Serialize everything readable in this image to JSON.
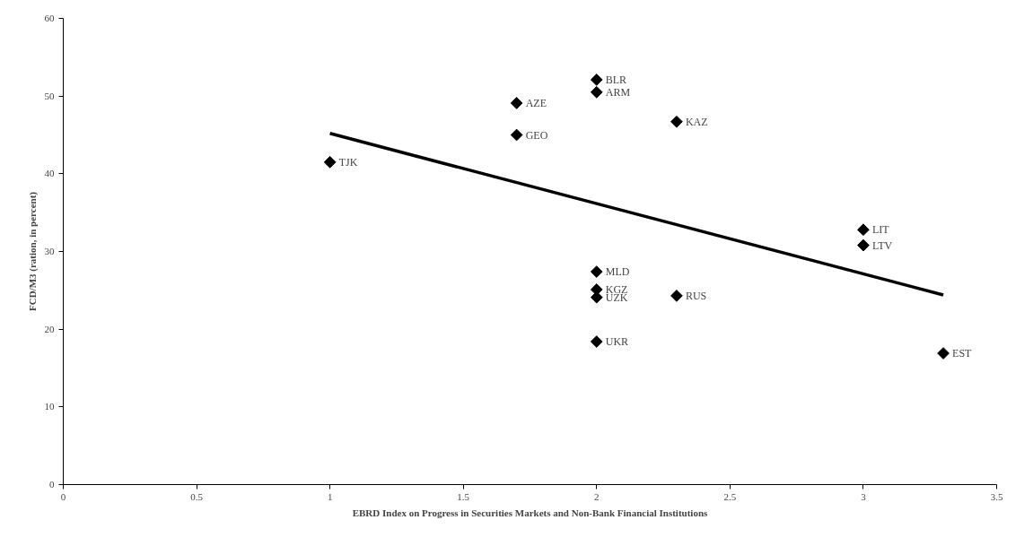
{
  "chart_data": {
    "type": "scatter",
    "xlabel": "EBRD Index on Progress in Securities Markets and Non-Bank Financial Institutions",
    "ylabel": "FCD/M3 (ration, in percent)",
    "xlim": [
      0,
      3.5
    ],
    "xticks": [
      0,
      0.5,
      1,
      1.5,
      2,
      2.5,
      3,
      3.5
    ],
    "ylim": [
      0,
      60
    ],
    "yticks": [
      0,
      10,
      20,
      30,
      40,
      50,
      60
    ],
    "grid": false,
    "marker": "diamond",
    "series": [
      {
        "color": "#000000",
        "x": [
          1,
          1.7,
          1.7,
          2,
          2,
          2,
          2,
          2,
          2,
          2.3,
          2.3,
          3,
          3,
          3.3
        ],
        "values": [
          41.5,
          49.1,
          45.0,
          52.1,
          50.5,
          27.4,
          25.1,
          24.1,
          18.4,
          46.7,
          24.3,
          32.8,
          30.8,
          16.9
        ]
      },
      {
        "type": "line",
        "color": "#000000",
        "line_style": "solid",
        "marker": "none",
        "x": [
          1,
          3.3
        ],
        "values": [
          45.2,
          24.4
        ]
      }
    ],
    "annotations": [
      {
        "text": "TJK",
        "x": 1,
        "y": 41.5
      },
      {
        "text": "AZE",
        "x": 1.7,
        "y": 49.1
      },
      {
        "text": "GEO",
        "x": 1.7,
        "y": 45.0
      },
      {
        "text": "BLR",
        "x": 2,
        "y": 52.1
      },
      {
        "text": "ARM",
        "x": 2,
        "y": 50.5
      },
      {
        "text": "MLD",
        "x": 2,
        "y": 27.4
      },
      {
        "text": "KGZ",
        "x": 2,
        "y": 25.1
      },
      {
        "text": "UZK",
        "x": 2,
        "y": 24.1
      },
      {
        "text": "UKR",
        "x": 2,
        "y": 18.4
      },
      {
        "text": "KAZ",
        "x": 2.3,
        "y": 46.7
      },
      {
        "text": "RUS",
        "x": 2.3,
        "y": 24.3
      },
      {
        "text": "LIT",
        "x": 3,
        "y": 32.8
      },
      {
        "text": "LTV",
        "x": 3,
        "y": 30.8
      },
      {
        "text": "EST",
        "x": 3.3,
        "y": 16.9
      }
    ]
  }
}
